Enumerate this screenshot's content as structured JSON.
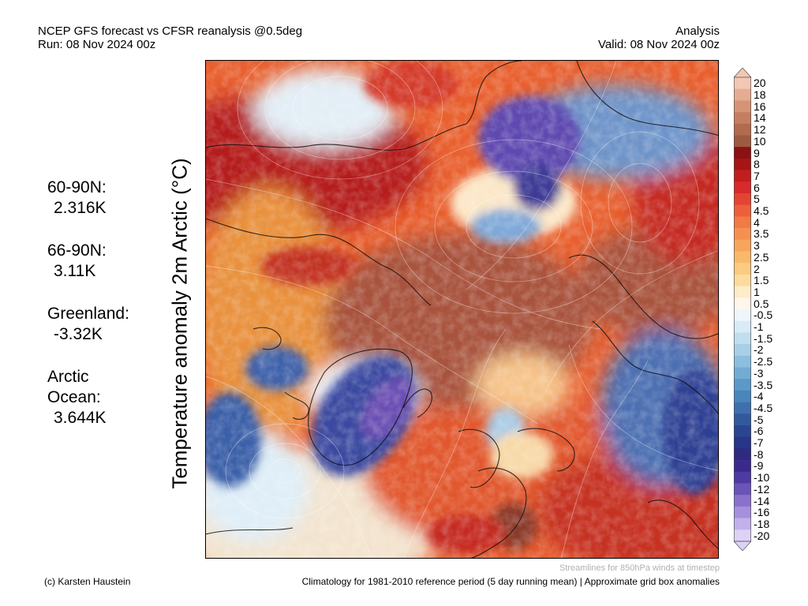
{
  "header": {
    "title": "NCEP GFS forecast vs CFSR reanalysis @0.5deg",
    "run": "Run: 08 Nov 2024 00z",
    "mode": "Analysis",
    "valid": "Valid: 08 Nov 2024 00z"
  },
  "vertical_title": "Temperature anomaly 2m Arctic (°C)",
  "stats": [
    {
      "label": "60-90N:",
      "value": "2.316K"
    },
    {
      "label": "66-90N:",
      "value": "3.11K"
    },
    {
      "label": "Greenland:",
      "value": "-3.32K"
    },
    {
      "label": "Arctic\nOcean:",
      "value": "3.644K"
    }
  ],
  "colorbar": {
    "labels": [
      "20",
      "18",
      "16",
      "14",
      "12",
      "10",
      "9",
      "8",
      "7",
      "6",
      "5",
      "4.5",
      "4",
      "3.5",
      "3",
      "2.5",
      "2",
      "1.5",
      "1",
      "0.5",
      "-0.5",
      "-1",
      "-1.5",
      "-2",
      "-2.5",
      "-3",
      "-3.5",
      "-4",
      "-4.5",
      "-5",
      "-6",
      "-7",
      "-8",
      "-9",
      "-10",
      "-12",
      "-14",
      "-16",
      "-18",
      "-20"
    ],
    "colors": [
      "#f2c8b4",
      "#e4ad93",
      "#d69477",
      "#c67e61",
      "#b26b4e",
      "#9e5a40",
      "#8a1212",
      "#a51515",
      "#c21e1e",
      "#d82a2a",
      "#e34432",
      "#ec5f3a",
      "#f27a44",
      "#f59150",
      "#f7a55c",
      "#f9b96c",
      "#fbcb82",
      "#fcdc9e",
      "#fdecc8",
      "#fff7ea",
      "#eef6fb",
      "#d8ebf6",
      "#c1deef",
      "#a7cfe6",
      "#8cbedd",
      "#72acd3",
      "#5b99c7",
      "#4a85bb",
      "#3e70ad",
      "#33599c",
      "#2b4690",
      "#283588",
      "#2d2a80",
      "#3b2a8c",
      "#4e3aa0",
      "#6a54b8",
      "#8a72cc",
      "#a68fdc",
      "#c2b0ea",
      "#ddd2f6"
    ]
  },
  "footer": {
    "left": "(c) Karsten Haustein",
    "note": "Streamlines for 850hPa winds at timestep",
    "right": "Climatology for 1981-2010 reference period (5 day running mean) | Approximate grid box anomalies"
  }
}
